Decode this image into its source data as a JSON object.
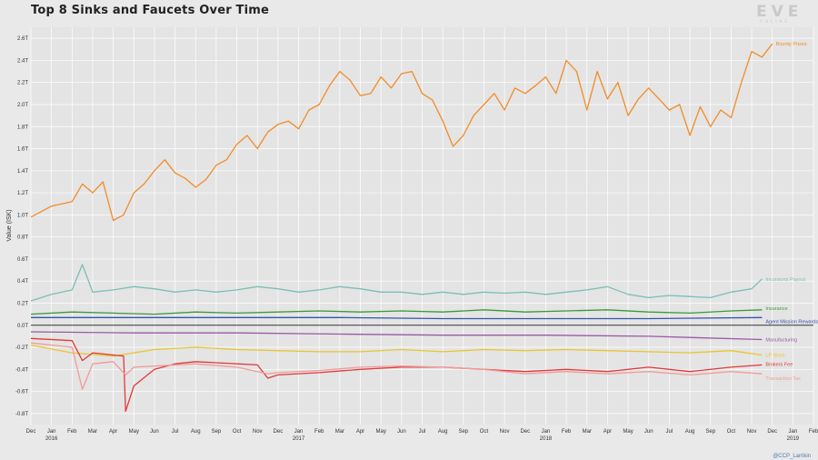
{
  "title": "Top 8 Sinks and Faucets Over Time",
  "logo": {
    "word": "EVE",
    "sub": "ONLINE"
  },
  "credit": "@CCP_Larrikin",
  "chart_data": {
    "type": "line",
    "title": "Top 8 Sinks and Faucets Over Time",
    "xlabel": "",
    "ylabel": "Value (ISK)",
    "ylim": [
      -0.9,
      2.7
    ],
    "yticks": [
      {
        "v": 2.6,
        "label": "2.6T"
      },
      {
        "v": 2.4,
        "label": "2.4T"
      },
      {
        "v": 2.2,
        "label": "2.2T"
      },
      {
        "v": 2.0,
        "label": "2.0T"
      },
      {
        "v": 1.8,
        "label": "1.8T"
      },
      {
        "v": 1.6,
        "label": "1.6T"
      },
      {
        "v": 1.4,
        "label": "1.4T"
      },
      {
        "v": 1.2,
        "label": "1.2T"
      },
      {
        "v": 1.0,
        "label": "1.0T"
      },
      {
        "v": 0.8,
        "label": "0.8T"
      },
      {
        "v": 0.6,
        "label": "0.6T"
      },
      {
        "v": 0.4,
        "label": "0.4T"
      },
      {
        "v": 0.2,
        "label": "0.2T"
      },
      {
        "v": 0.0,
        "label": "0.0T"
      },
      {
        "v": -0.2,
        "label": "-0.2T"
      },
      {
        "v": -0.4,
        "label": "-0.4T"
      },
      {
        "v": -0.6,
        "label": "-0.6T"
      },
      {
        "v": -0.8,
        "label": "-0.8T"
      }
    ],
    "xlim": [
      0,
      38
    ],
    "xticks": [
      {
        "v": 0,
        "label": "Dec"
      },
      {
        "v": 1,
        "label": "Jan",
        "sub": "2016"
      },
      {
        "v": 2,
        "label": "Feb"
      },
      {
        "v": 3,
        "label": "Mar"
      },
      {
        "v": 4,
        "label": "Apr"
      },
      {
        "v": 5,
        "label": "May"
      },
      {
        "v": 6,
        "label": "Jun"
      },
      {
        "v": 7,
        "label": "Jul"
      },
      {
        "v": 8,
        "label": "Aug"
      },
      {
        "v": 9,
        "label": "Sep"
      },
      {
        "v": 10,
        "label": "Oct"
      },
      {
        "v": 11,
        "label": "Nov"
      },
      {
        "v": 12,
        "label": "Dec"
      },
      {
        "v": 13,
        "label": "Jan",
        "sub": "2017"
      },
      {
        "v": 14,
        "label": "Feb"
      },
      {
        "v": 15,
        "label": "Mar"
      },
      {
        "v": 16,
        "label": "Apr"
      },
      {
        "v": 17,
        "label": "May"
      },
      {
        "v": 18,
        "label": "Jun"
      },
      {
        "v": 19,
        "label": "Jul"
      },
      {
        "v": 20,
        "label": "Aug"
      },
      {
        "v": 21,
        "label": "Sep"
      },
      {
        "v": 22,
        "label": "Oct"
      },
      {
        "v": 23,
        "label": "Nov"
      },
      {
        "v": 24,
        "label": "Dec"
      },
      {
        "v": 25,
        "label": "Jan",
        "sub": "2018"
      },
      {
        "v": 26,
        "label": "Feb"
      },
      {
        "v": 27,
        "label": "Mar"
      },
      {
        "v": 28,
        "label": "Apr"
      },
      {
        "v": 29,
        "label": "May"
      },
      {
        "v": 30,
        "label": "Jun"
      },
      {
        "v": 31,
        "label": "Jul"
      },
      {
        "v": 32,
        "label": "Aug"
      },
      {
        "v": 33,
        "label": "Sep"
      },
      {
        "v": 34,
        "label": "Oct"
      },
      {
        "v": 35,
        "label": "Nov"
      },
      {
        "v": 36,
        "label": "Dec"
      },
      {
        "v": 37,
        "label": "Jan",
        "sub": "2019"
      },
      {
        "v": 38,
        "label": "Feb"
      }
    ],
    "grid": true,
    "zero_line": true,
    "series": [
      {
        "name": "Bounty Prizes",
        "color": "#f28c28",
        "points": [
          [
            0,
            0.98
          ],
          [
            1,
            1.08
          ],
          [
            2,
            1.12
          ],
          [
            2.5,
            1.28
          ],
          [
            3,
            1.2
          ],
          [
            3.5,
            1.3
          ],
          [
            4,
            0.95
          ],
          [
            4.5,
            1.0
          ],
          [
            5,
            1.2
          ],
          [
            5.5,
            1.28
          ],
          [
            6,
            1.4
          ],
          [
            6.5,
            1.5
          ],
          [
            7,
            1.38
          ],
          [
            7.5,
            1.33
          ],
          [
            8,
            1.25
          ],
          [
            8.5,
            1.32
          ],
          [
            9,
            1.45
          ],
          [
            9.5,
            1.5
          ],
          [
            10,
            1.64
          ],
          [
            10.5,
            1.72
          ],
          [
            11,
            1.6
          ],
          [
            11.5,
            1.75
          ],
          [
            12,
            1.82
          ],
          [
            12.5,
            1.85
          ],
          [
            13,
            1.78
          ],
          [
            13.5,
            1.95
          ],
          [
            14,
            2.0
          ],
          [
            14.5,
            2.17
          ],
          [
            15,
            2.3
          ],
          [
            15.5,
            2.22
          ],
          [
            16,
            2.08
          ],
          [
            16.5,
            2.1
          ],
          [
            17,
            2.25
          ],
          [
            17.5,
            2.15
          ],
          [
            18,
            2.28
          ],
          [
            18.5,
            2.3
          ],
          [
            19,
            2.1
          ],
          [
            19.5,
            2.04
          ],
          [
            20,
            1.85
          ],
          [
            20.5,
            1.62
          ],
          [
            21,
            1.72
          ],
          [
            21.5,
            1.9
          ],
          [
            22,
            2.0
          ],
          [
            22.5,
            2.1
          ],
          [
            23,
            1.95
          ],
          [
            23.5,
            2.15
          ],
          [
            24,
            2.1
          ],
          [
            24.5,
            2.17
          ],
          [
            25,
            2.25
          ],
          [
            25.5,
            2.1
          ],
          [
            26,
            2.4
          ],
          [
            26.5,
            2.3
          ],
          [
            27,
            1.95
          ],
          [
            27.5,
            2.3
          ],
          [
            28,
            2.05
          ],
          [
            28.5,
            2.2
          ],
          [
            29,
            1.9
          ],
          [
            29.5,
            2.05
          ],
          [
            30,
            2.15
          ],
          [
            30.5,
            2.05
          ],
          [
            31,
            1.95
          ],
          [
            31.5,
            2.0
          ],
          [
            32,
            1.72
          ],
          [
            32.5,
            1.98
          ],
          [
            33,
            1.8
          ],
          [
            33.5,
            1.95
          ],
          [
            34,
            1.88
          ],
          [
            34.5,
            2.2
          ],
          [
            35,
            2.48
          ],
          [
            35.5,
            2.43
          ],
          [
            36,
            2.55
          ]
        ]
      },
      {
        "name": "Incursions Payout",
        "color": "#7bbfb5",
        "points": [
          [
            0,
            0.22
          ],
          [
            1,
            0.28
          ],
          [
            2,
            0.32
          ],
          [
            2.5,
            0.55
          ],
          [
            3,
            0.3
          ],
          [
            4,
            0.32
          ],
          [
            5,
            0.35
          ],
          [
            6,
            0.33
          ],
          [
            7,
            0.3
          ],
          [
            8,
            0.32
          ],
          [
            9,
            0.3
          ],
          [
            10,
            0.32
          ],
          [
            11,
            0.35
          ],
          [
            12,
            0.33
          ],
          [
            13,
            0.3
          ],
          [
            14,
            0.32
          ],
          [
            15,
            0.35
          ],
          [
            16,
            0.33
          ],
          [
            17,
            0.3
          ],
          [
            18,
            0.3
          ],
          [
            19,
            0.28
          ],
          [
            20,
            0.3
          ],
          [
            21,
            0.28
          ],
          [
            22,
            0.3
          ],
          [
            23,
            0.29
          ],
          [
            24,
            0.3
          ],
          [
            25,
            0.28
          ],
          [
            26,
            0.3
          ],
          [
            27,
            0.32
          ],
          [
            28,
            0.35
          ],
          [
            29,
            0.28
          ],
          [
            30,
            0.25
          ],
          [
            31,
            0.27
          ],
          [
            32,
            0.26
          ],
          [
            33,
            0.25
          ],
          [
            34,
            0.3
          ],
          [
            35,
            0.33
          ],
          [
            35.5,
            0.42
          ]
        ]
      },
      {
        "name": "Insurance",
        "color": "#3a9a3a",
        "points": [
          [
            0,
            0.1
          ],
          [
            2,
            0.12
          ],
          [
            4,
            0.11
          ],
          [
            6,
            0.1
          ],
          [
            8,
            0.12
          ],
          [
            10,
            0.11
          ],
          [
            12,
            0.12
          ],
          [
            14,
            0.13
          ],
          [
            16,
            0.12
          ],
          [
            18,
            0.13
          ],
          [
            20,
            0.12
          ],
          [
            22,
            0.14
          ],
          [
            24,
            0.12
          ],
          [
            26,
            0.13
          ],
          [
            28,
            0.14
          ],
          [
            30,
            0.12
          ],
          [
            32,
            0.11
          ],
          [
            34,
            0.13
          ],
          [
            35.5,
            0.14
          ]
        ]
      },
      {
        "name": "Agent Mission Rewards",
        "color": "#3355aa",
        "points": [
          [
            0,
            0.07
          ],
          [
            5,
            0.07
          ],
          [
            10,
            0.07
          ],
          [
            15,
            0.07
          ],
          [
            20,
            0.06
          ],
          [
            25,
            0.06
          ],
          [
            30,
            0.06
          ],
          [
            35.5,
            0.07
          ]
        ]
      },
      {
        "name": "Manufacturing",
        "color": "#9b59a6",
        "points": [
          [
            0,
            -0.06
          ],
          [
            5,
            -0.07
          ],
          [
            10,
            -0.07
          ],
          [
            15,
            -0.08
          ],
          [
            20,
            -0.09
          ],
          [
            25,
            -0.09
          ],
          [
            30,
            -0.1
          ],
          [
            35.5,
            -0.13
          ]
        ]
      },
      {
        "name": "LP Store",
        "color": "#e8c533",
        "points": [
          [
            0,
            -0.18
          ],
          [
            2,
            -0.25
          ],
          [
            4,
            -0.28
          ],
          [
            6,
            -0.22
          ],
          [
            8,
            -0.2
          ],
          [
            10,
            -0.22
          ],
          [
            12,
            -0.23
          ],
          [
            14,
            -0.24
          ],
          [
            16,
            -0.24
          ],
          [
            18,
            -0.22
          ],
          [
            20,
            -0.24
          ],
          [
            22,
            -0.22
          ],
          [
            24,
            -0.23
          ],
          [
            26,
            -0.22
          ],
          [
            28,
            -0.23
          ],
          [
            30,
            -0.24
          ],
          [
            32,
            -0.25
          ],
          [
            34,
            -0.23
          ],
          [
            35.5,
            -0.27
          ]
        ]
      },
      {
        "name": "Brokers Fee",
        "color": "#e03a3a",
        "points": [
          [
            0,
            -0.12
          ],
          [
            2,
            -0.14
          ],
          [
            2.5,
            -0.32
          ],
          [
            3,
            -0.25
          ],
          [
            4,
            -0.27
          ],
          [
            4.5,
            -0.28
          ],
          [
            4.6,
            -0.78
          ],
          [
            5,
            -0.55
          ],
          [
            6,
            -0.4
          ],
          [
            7,
            -0.35
          ],
          [
            8,
            -0.33
          ],
          [
            9,
            -0.34
          ],
          [
            10,
            -0.35
          ],
          [
            11,
            -0.36
          ],
          [
            11.5,
            -0.48
          ],
          [
            12,
            -0.45
          ],
          [
            14,
            -0.43
          ],
          [
            16,
            -0.4
          ],
          [
            18,
            -0.38
          ],
          [
            20,
            -0.38
          ],
          [
            22,
            -0.4
          ],
          [
            24,
            -0.42
          ],
          [
            26,
            -0.4
          ],
          [
            28,
            -0.42
          ],
          [
            30,
            -0.38
          ],
          [
            32,
            -0.42
          ],
          [
            34,
            -0.38
          ],
          [
            35.5,
            -0.36
          ]
        ]
      },
      {
        "name": "Transaction Tax",
        "color": "#f39a9a",
        "points": [
          [
            0,
            -0.16
          ],
          [
            2,
            -0.2
          ],
          [
            2.5,
            -0.58
          ],
          [
            3,
            -0.35
          ],
          [
            4,
            -0.33
          ],
          [
            4.6,
            -0.45
          ],
          [
            5,
            -0.38
          ],
          [
            6,
            -0.37
          ],
          [
            8,
            -0.35
          ],
          [
            10,
            -0.38
          ],
          [
            11.5,
            -0.44
          ],
          [
            12,
            -0.43
          ],
          [
            14,
            -0.41
          ],
          [
            16,
            -0.38
          ],
          [
            18,
            -0.37
          ],
          [
            20,
            -0.38
          ],
          [
            22,
            -0.4
          ],
          [
            24,
            -0.44
          ],
          [
            26,
            -0.42
          ],
          [
            28,
            -0.44
          ],
          [
            30,
            -0.42
          ],
          [
            32,
            -0.45
          ],
          [
            34,
            -0.42
          ],
          [
            35.5,
            -0.44
          ]
        ]
      }
    ]
  }
}
